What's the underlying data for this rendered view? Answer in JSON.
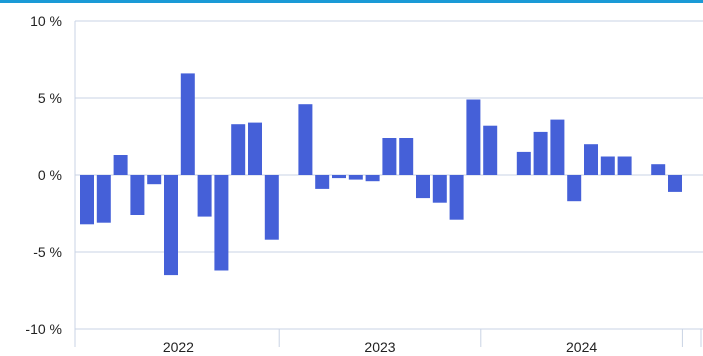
{
  "colors": {
    "bar": "#4560d8",
    "grid": "#c9d3e4",
    "axis": "#c9d3e4",
    "top_bar": "#1a9ad6"
  },
  "chart_data": {
    "type": "bar",
    "title": "",
    "xlabel": "",
    "ylabel": "",
    "ylim": [
      -10,
      10
    ],
    "y_ticks": [
      10,
      5,
      0,
      -5,
      -10
    ],
    "y_tick_labels": [
      "10 %",
      "5 %",
      "0 %",
      "-5 %",
      "-10 %"
    ],
    "grid": true,
    "legend": "none",
    "x_year_labels": [
      "2022",
      "2023",
      "2024"
    ],
    "series": [
      {
        "values": [
          -3.2,
          -3.1,
          1.3,
          -2.6,
          -0.6,
          -6.5,
          6.6,
          -2.7,
          -6.2,
          3.3,
          3.4,
          -4.2,
          0.0,
          4.6,
          -0.9,
          -0.2,
          -0.3,
          -0.4,
          2.4,
          2.4,
          -1.5,
          -1.8,
          -2.9,
          4.9,
          3.2,
          0.0,
          1.5,
          2.8,
          3.6,
          -1.7,
          2.0,
          1.2,
          1.2,
          0.0,
          0.7,
          -1.1
        ]
      }
    ]
  }
}
